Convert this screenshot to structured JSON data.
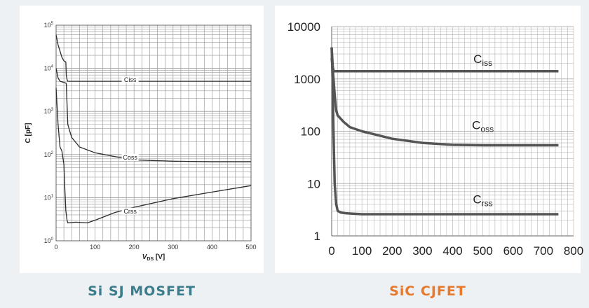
{
  "colors": {
    "background": "#eef1f4",
    "caption_left": "#3a7d8c",
    "caption_right": "#e8782a",
    "curve_left": "#2b2b2b",
    "curve_right": "#555555",
    "grid": "#9a9a9a"
  },
  "captions": {
    "left": "Si SJ MOSFET",
    "right": "SiC CJFET"
  },
  "chart_data": [
    {
      "type": "line",
      "title": "",
      "xlabel": "V_DS [V]",
      "xlabel_main": "V",
      "xlabel_sub": "DS",
      "xlabel_unit": " [V]",
      "ylabel": "C [pF]",
      "xlim": [
        0,
        500
      ],
      "ylim": [
        1,
        100000
      ],
      "yscale": "log",
      "grid": true,
      "x_ticks": [
        "0",
        "100",
        "200",
        "300",
        "400",
        "500"
      ],
      "y_ticks": [
        {
          "base": "10",
          "exp": "0"
        },
        {
          "base": "10",
          "exp": "1"
        },
        {
          "base": "10",
          "exp": "2"
        },
        {
          "base": "10",
          "exp": "3"
        },
        {
          "base": "10",
          "exp": "4"
        },
        {
          "base": "10",
          "exp": "5"
        }
      ],
      "series": [
        {
          "name": "Ciss",
          "label_at": [
            190,
            5000
          ],
          "x": [
            0,
            5,
            10,
            15,
            20,
            25,
            26,
            28,
            30,
            50,
            100,
            200,
            300,
            400,
            500
          ],
          "y": [
            60000,
            35000,
            25000,
            18000,
            15000,
            14000,
            7000,
            5500,
            5000,
            5000,
            5000,
            5000,
            5000,
            5000,
            5000
          ]
        },
        {
          "name": "Coss",
          "label_at": [
            190,
            80
          ],
          "x": [
            0,
            5,
            10,
            20,
            26,
            28,
            30,
            35,
            40,
            60,
            100,
            150,
            200,
            300,
            400,
            500
          ],
          "y": [
            10000,
            6000,
            5000,
            4700,
            4500,
            1500,
            500,
            350,
            250,
            150,
            110,
            90,
            75,
            70,
            68,
            68
          ]
        },
        {
          "name": "Crss",
          "label_at": [
            190,
            4.5
          ],
          "x": [
            0,
            5,
            10,
            15,
            20,
            22,
            25,
            28,
            30,
            50,
            80,
            100,
            150,
            200,
            300,
            400,
            500
          ],
          "y": [
            3500,
            500,
            150,
            120,
            60,
            20,
            5,
            3,
            2.6,
            2.7,
            2.6,
            3,
            4.5,
            6,
            9.5,
            13.5,
            19
          ]
        }
      ]
    },
    {
      "type": "line",
      "title": "",
      "xlabel": "",
      "ylabel": "",
      "xlim": [
        0,
        800
      ],
      "ylim": [
        1,
        10000
      ],
      "yscale": "log",
      "grid": true,
      "x_ticks": [
        "0",
        "100",
        "200",
        "300",
        "400",
        "500",
        "600",
        "700",
        "800"
      ],
      "y_ticks": [
        "1",
        "10",
        "100",
        "1000",
        "10000"
      ],
      "series": [
        {
          "name": "Ciss",
          "label_main": "C",
          "label_sub": "iss",
          "label_at": [
            500,
            2000
          ],
          "x": [
            0,
            3,
            6,
            10,
            50,
            100,
            200,
            300,
            400,
            500,
            600,
            700,
            750
          ],
          "y": [
            2500,
            1800,
            1450,
            1400,
            1400,
            1400,
            1400,
            1400,
            1400,
            1400,
            1400,
            1400,
            1400
          ]
        },
        {
          "name": "Coss",
          "label_main": "C",
          "label_sub": "oss",
          "label_at": [
            500,
            110
          ],
          "x": [
            0,
            5,
            10,
            15,
            20,
            40,
            60,
            100,
            150,
            200,
            300,
            400,
            500,
            600,
            700,
            750
          ],
          "y": [
            4000,
            1200,
            500,
            250,
            200,
            150,
            120,
            100,
            85,
            72,
            60,
            55,
            54,
            54,
            54,
            54
          ]
        },
        {
          "name": "Crss",
          "label_main": "C",
          "label_sub": "rss",
          "label_at": [
            500,
            4.2
          ],
          "x": [
            0,
            3,
            6,
            10,
            15,
            20,
            30,
            50,
            100,
            200,
            300,
            400,
            500,
            600,
            700,
            750
          ],
          "y": [
            4000,
            1000,
            100,
            10,
            4,
            3,
            2.8,
            2.7,
            2.6,
            2.6,
            2.6,
            2.6,
            2.6,
            2.6,
            2.6,
            2.6
          ]
        }
      ]
    }
  ]
}
